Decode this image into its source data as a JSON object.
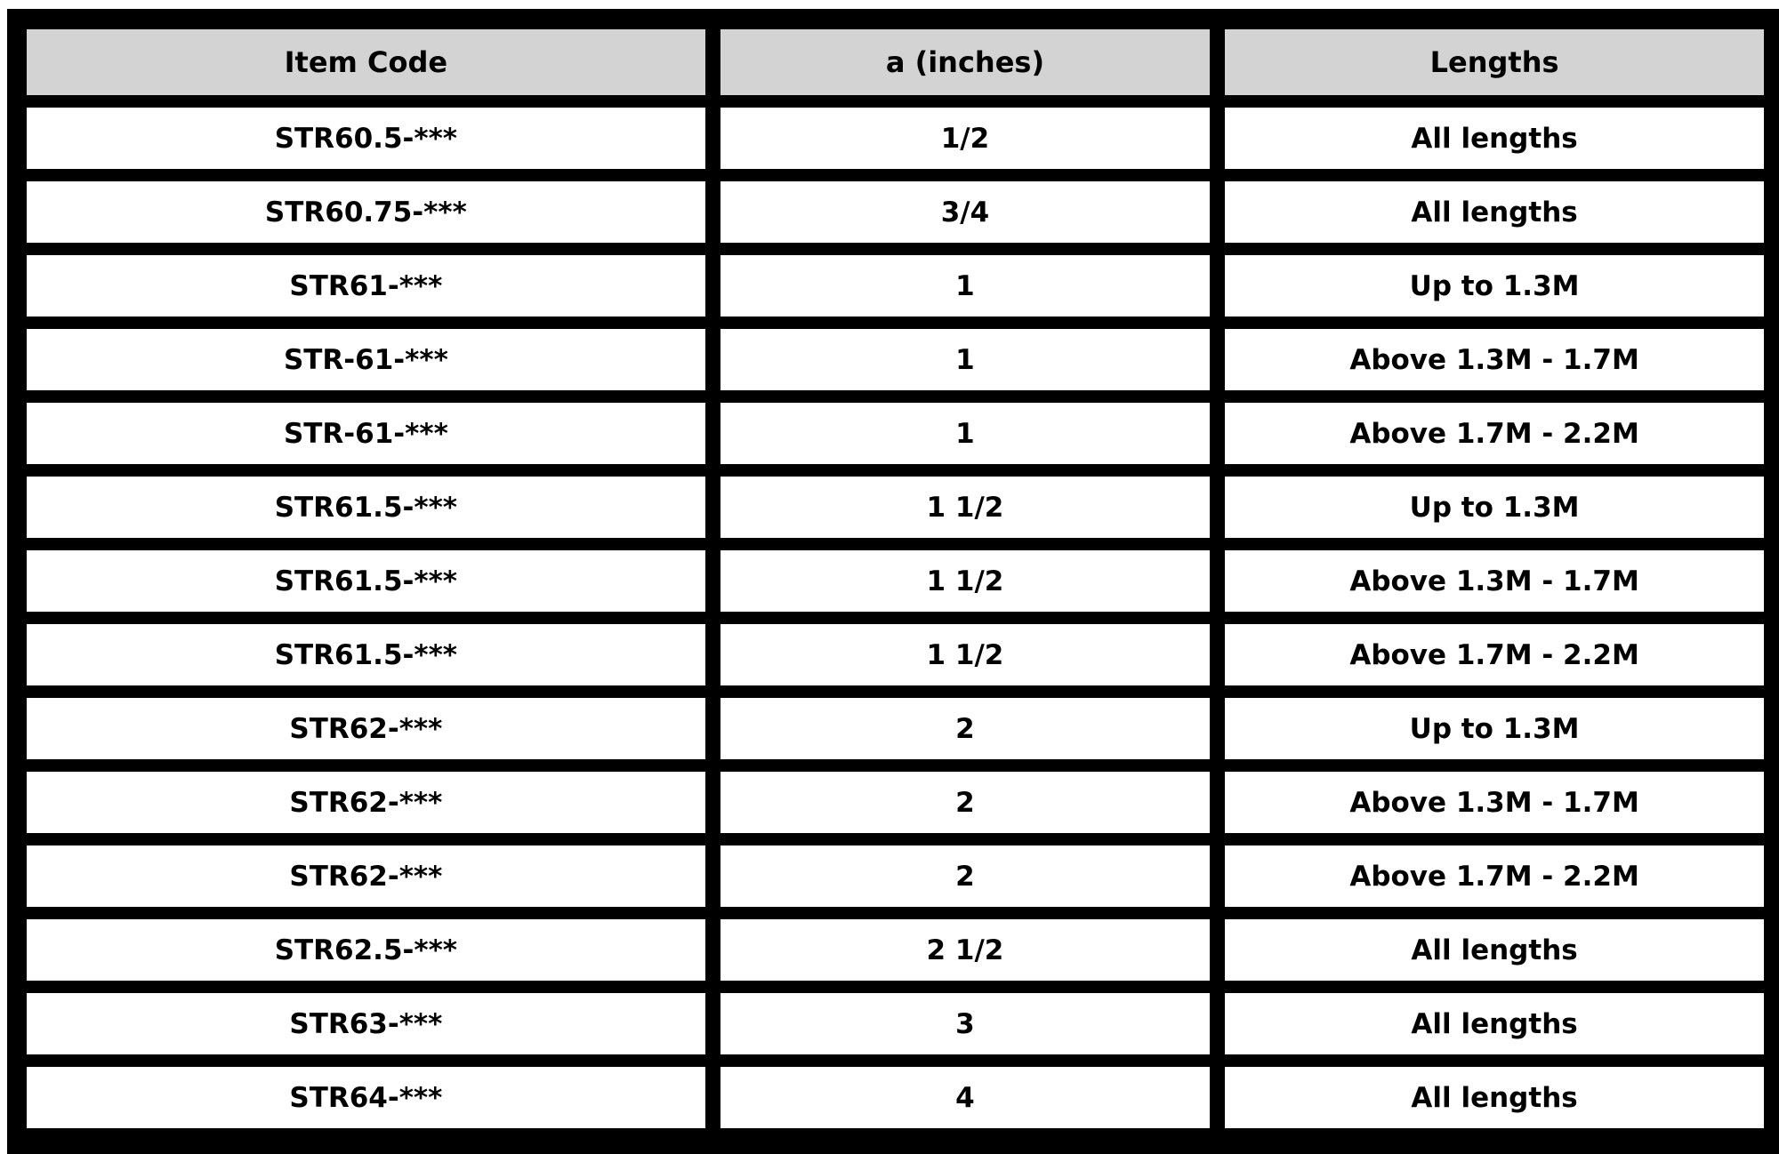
{
  "chart_data": {
    "type": "table",
    "title": "",
    "columns": [
      "Item Code",
      "a (inches)",
      "Lengths"
    ],
    "rows": [
      [
        "STR60.5-***",
        "1/2",
        "All lengths"
      ],
      [
        "STR60.75-***",
        "3/4",
        "All lengths"
      ],
      [
        "STR61-***",
        "1",
        "Up to 1.3M"
      ],
      [
        "STR-61-***",
        "1",
        "Above 1.3M - 1.7M"
      ],
      [
        "STR-61-***",
        "1",
        "Above 1.7M - 2.2M"
      ],
      [
        "STR61.5-***",
        "1 1/2",
        "Up to 1.3M"
      ],
      [
        "STR61.5-***",
        "1 1/2",
        "Above 1.3M - 1.7M"
      ],
      [
        "STR61.5-***",
        "1 1/2",
        "Above 1.7M - 2.2M"
      ],
      [
        "STR62-***",
        "2",
        "Up to 1.3M"
      ],
      [
        "STR62-***",
        "2",
        "Above 1.3M - 1.7M"
      ],
      [
        "STR62-***",
        "2",
        "Above 1.7M - 2.2M"
      ],
      [
        "STR62.5-***",
        "2 1/2",
        "All lengths"
      ],
      [
        "STR63-***",
        "3",
        "All lengths"
      ],
      [
        "STR64-***",
        "4",
        "All lengths"
      ]
    ],
    "colors": {
      "grid_background": "#000000",
      "header_background": "#d3d3d3",
      "cell_background": "#ffffff",
      "text": "#000000",
      "page_margin": "#ffffff"
    },
    "layout": {
      "grid": "on",
      "header_row": true,
      "text_align": "center"
    }
  }
}
